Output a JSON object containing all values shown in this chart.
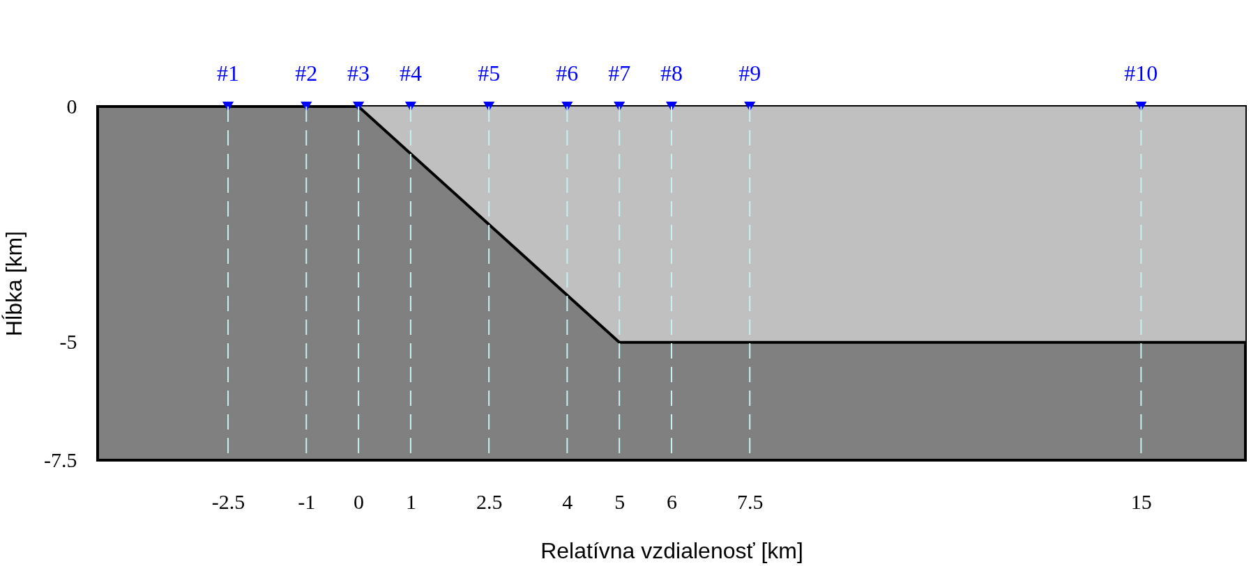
{
  "chart_data": {
    "type": "area",
    "xlabel": "Relatívna vzdialenosť [km]",
    "ylabel": "Hĺbka [km]",
    "x": [
      -5,
      0,
      5,
      17
    ],
    "series": [
      {
        "color": "#c0c0c0",
        "values": [
          0,
          0,
          -5,
          -5
        ]
      },
      {
        "type": "scatter",
        "color": "#0000ff",
        "marker": "triangle",
        "x": [
          -2.5,
          -1,
          0,
          1,
          2.5,
          4,
          5,
          6,
          7.5,
          15
        ],
        "values": [
          0,
          0,
          0,
          0,
          0,
          0,
          0,
          0,
          0,
          0
        ]
      }
    ],
    "xlim": [
      -5,
      17
    ],
    "xticks": [
      -2.5,
      -1,
      0,
      1,
      2.5,
      4,
      5,
      6,
      7.5,
      15
    ],
    "ylim": [
      -7.5,
      0
    ],
    "yticks": [
      0,
      -5,
      -7.5
    ],
    "bands": [
      {
        "axis": "y",
        "from": -7.5,
        "to": 0,
        "color": "#808080"
      }
    ],
    "annotations": [
      {
        "text": "#1",
        "x": -2.5,
        "y": 0
      },
      {
        "text": "#2",
        "x": -1,
        "y": 0
      },
      {
        "text": "#3",
        "x": 0,
        "y": 0
      },
      {
        "text": "#4",
        "x": 1,
        "y": 0
      },
      {
        "text": "#5",
        "x": 2.5,
        "y": 0
      },
      {
        "text": "#6",
        "x": 4,
        "y": 0
      },
      {
        "text": "#7",
        "x": 5,
        "y": 0
      },
      {
        "text": "#8",
        "x": 6,
        "y": 0
      },
      {
        "text": "#9",
        "x": 7.5,
        "y": 0
      },
      {
        "text": "#10",
        "x": 15,
        "y": 0
      }
    ],
    "ref_lines": [
      {
        "axis": "x",
        "value": -2.5,
        "color": "#c8f0f0",
        "line_style": "dashed"
      },
      {
        "axis": "x",
        "value": -1,
        "color": "#c8f0f0",
        "line_style": "dashed"
      },
      {
        "axis": "x",
        "value": 0,
        "color": "#c8f0f0",
        "line_style": "dashed"
      },
      {
        "axis": "x",
        "value": 1,
        "color": "#c8f0f0",
        "line_style": "dashed"
      },
      {
        "axis": "x",
        "value": 2.5,
        "color": "#c8f0f0",
        "line_style": "dashed"
      },
      {
        "axis": "x",
        "value": 4,
        "color": "#c8f0f0",
        "line_style": "dashed"
      },
      {
        "axis": "x",
        "value": 5,
        "color": "#c8f0f0",
        "line_style": "dashed"
      },
      {
        "axis": "x",
        "value": 6,
        "color": "#c8f0f0",
        "line_style": "dashed"
      },
      {
        "axis": "x",
        "value": 7.5,
        "color": "#c8f0f0",
        "line_style": "dashed"
      },
      {
        "axis": "x",
        "value": 15,
        "color": "#c8f0f0",
        "line_style": "dashed"
      }
    ]
  }
}
